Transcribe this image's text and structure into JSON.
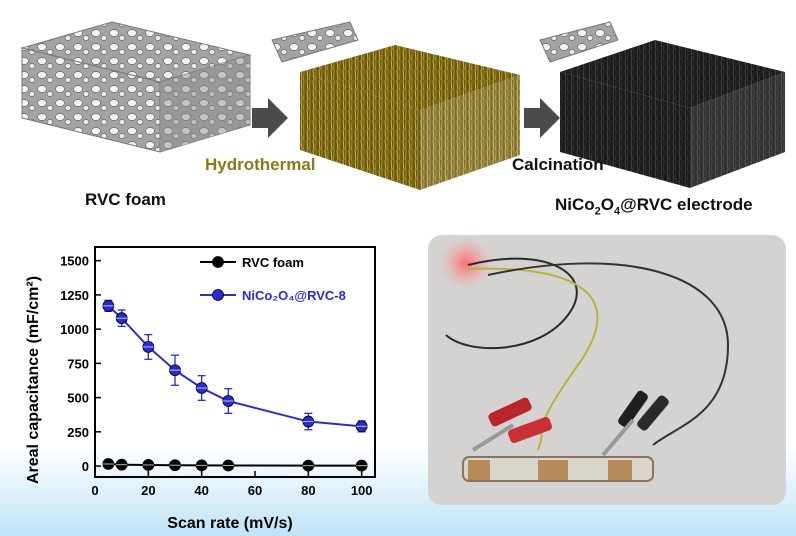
{
  "header": {
    "step1_label": "RVC foam",
    "step2_label": "Hydrothermal",
    "step3_label": "Calcination",
    "result_label": "NiCo2O4@RVC electrode"
  },
  "colors": {
    "foam_gray": "#9a9a9a",
    "hydrothermal_gold": "#8b7a1a",
    "calcined_black": "#1c1c1c",
    "arrow": "#4a4a4a",
    "series_rvc": "#000000",
    "series_nico": "#2b2bd6",
    "bottom_glow": "#bfe3f7"
  },
  "chart_data": {
    "type": "line",
    "xlabel": "Scan rate (mV/s)",
    "ylabel": "Areal capacitance (mF/cm²)",
    "xlim": [
      0,
      105
    ],
    "ylim": [
      -80,
      1600
    ],
    "xticks": [
      0,
      20,
      40,
      60,
      80,
      100
    ],
    "yticks": [
      0,
      250,
      500,
      750,
      1000,
      1250,
      1500
    ],
    "legend_position": "top-right",
    "series": [
      {
        "name": "RVC foam",
        "color": "#000000",
        "x": [
          5,
          10,
          20,
          30,
          40,
          50,
          80,
          100
        ],
        "values": [
          15,
          10,
          8,
          6,
          5,
          4,
          3,
          3
        ]
      },
      {
        "name": "NiCo₂O₄@RVC-8",
        "color": "#2b2bd6",
        "x": [
          5,
          10,
          20,
          30,
          40,
          50,
          80,
          100
        ],
        "values": [
          1170,
          1080,
          870,
          700,
          570,
          475,
          325,
          290
        ],
        "errors": [
          40,
          60,
          90,
          110,
          90,
          90,
          60,
          40
        ]
      }
    ]
  },
  "photo": {
    "subject": "photo-of-device-lighting-red-led"
  }
}
